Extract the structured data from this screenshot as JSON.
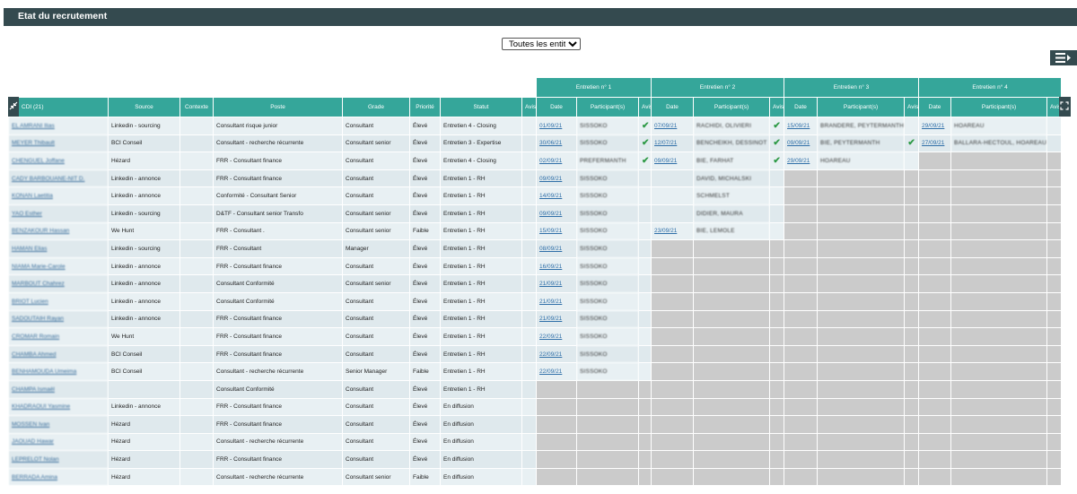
{
  "header": {
    "title": "Etat du recrutement"
  },
  "filter": {
    "selected": "Toutes les entités"
  },
  "table": {
    "groups": [
      "Entretien n° 1",
      "Entretien n° 2",
      "Entretien n° 3",
      "Entretien n° 4"
    ],
    "columns": [
      "CDI (21)",
      "Source",
      "Contexte",
      "Poste",
      "Grade",
      "Priorité",
      "Statut",
      "Avis"
    ],
    "interview_columns": [
      "Date",
      "Participant(s)",
      "Avis"
    ],
    "rows": [
      {
        "name": "EL AMRANI Ilias",
        "source": "Linkedin - sourcing",
        "contexte": "",
        "poste": "Consultant risque junior",
        "grade": "Consultant",
        "priorite": "Élevé",
        "statut": "Entretien 4 - Closing",
        "i": [
          [
            "01/09/21",
            "SISSOKO",
            true
          ],
          [
            "07/09/21",
            "RACHIDI, OLIVIERI",
            true
          ],
          [
            "15/09/21",
            "BRANDERE, PEYTERMANTH",
            false
          ],
          [
            "29/09/21",
            "HOAREAU",
            false
          ]
        ]
      },
      {
        "name": "MEYER Thibault",
        "source": "BCI Conseil",
        "contexte": "",
        "poste": "Consultant - recherche récurrente",
        "grade": "Consultant senior",
        "priorite": "Élevé",
        "statut": "Entretien 3 - Expertise",
        "i": [
          [
            "30/06/21",
            "SISSOKO",
            true
          ],
          [
            "12/07/21",
            "BENCHEIKH, DESSINOT",
            true
          ],
          [
            "09/09/21",
            "BIE, PEYTERMANTH",
            true
          ],
          [
            "27/09/21",
            "BALLARA-HECTOUL, HOAREAU",
            false
          ]
        ]
      },
      {
        "name": "CHENGUEL Joffane",
        "source": "Hézard",
        "contexte": "",
        "poste": "FRR - Consultant finance",
        "grade": "Consultant",
        "priorite": "Élevé",
        "statut": "Entretien 4 - Closing",
        "i": [
          [
            "02/09/21",
            "PREFERMANTH",
            true
          ],
          [
            "09/09/21",
            "BIE, FARHAT",
            true
          ],
          [
            "29/09/21",
            "HOAREAU",
            false
          ],
          null
        ]
      },
      {
        "name": "CADY BARBOUANE-NIT D.",
        "source": "Linkedin - annonce",
        "contexte": "",
        "poste": "FRR - Consultant finance",
        "grade": "Consultant",
        "priorite": "Élevé",
        "statut": "Entretien 1 - RH",
        "i": [
          [
            "09/09/21",
            "SISSOKO",
            false
          ],
          [
            "",
            "DAVID, MICHALSKI",
            false
          ],
          null,
          null
        ]
      },
      {
        "name": "KONAN Laetitia",
        "source": "Linkedin - annonce",
        "contexte": "",
        "poste": "Conformité - Consultant Senior",
        "grade": "Consultant",
        "priorite": "Élevé",
        "statut": "Entretien 1 - RH",
        "i": [
          [
            "14/09/21",
            "SISSOKO",
            false
          ],
          [
            "",
            "SCHMELST",
            false
          ],
          null,
          null
        ]
      },
      {
        "name": "YAO Esther",
        "source": "Linkedin - sourcing",
        "contexte": "",
        "poste": "D&TF - Consultant senior Transfo",
        "grade": "Consultant senior",
        "priorite": "Élevé",
        "statut": "Entretien 1 - RH",
        "i": [
          [
            "09/09/21",
            "SISSOKO",
            false
          ],
          [
            "",
            "DIDIER, MAURA",
            false
          ],
          null,
          null
        ]
      },
      {
        "name": "BENZAKOUR Hassan",
        "source": "We Hunt",
        "contexte": "",
        "poste": "FRR - Consultant .",
        "grade": "Consultant senior",
        "priorite": "Faible",
        "statut": "Entretien 1 - RH",
        "i": [
          [
            "15/09/21",
            "SISSOKO",
            false
          ],
          [
            "23/09/21",
            "BIE, LEMOLE",
            false
          ],
          null,
          null
        ]
      },
      {
        "name": "HAMAN Elias",
        "source": "Linkedin - sourcing",
        "contexte": "",
        "poste": "FRR - Consultant",
        "grade": "Manager",
        "priorite": "Élevé",
        "statut": "Entretien 1 - RH",
        "i": [
          [
            "08/09/21",
            "SISSOKO",
            false
          ],
          null,
          null,
          null
        ]
      },
      {
        "name": "NIAMA Marie-Carole",
        "source": "Linkedin - annonce",
        "contexte": "",
        "poste": "FRR - Consultant finance",
        "grade": "Consultant",
        "priorite": "Élevé",
        "statut": "Entretien 1 - RH",
        "i": [
          [
            "16/09/21",
            "SISSOKO",
            false
          ],
          null,
          null,
          null
        ]
      },
      {
        "name": "MARBOUT Chahrez",
        "source": "Linkedin - annonce",
        "contexte": "",
        "poste": "Consultant Conformité",
        "grade": "Consultant senior",
        "priorite": "Élevé",
        "statut": "Entretien 1 - RH",
        "i": [
          [
            "21/09/21",
            "SISSOKO",
            false
          ],
          null,
          null,
          null
        ]
      },
      {
        "name": "BRIOT Lucien",
        "source": "Linkedin - annonce",
        "contexte": "",
        "poste": "Consultant Conformité",
        "grade": "Consultant",
        "priorite": "Élevé",
        "statut": "Entretien 1 - RH",
        "i": [
          [
            "21/09/21",
            "SISSOKO",
            false
          ],
          null,
          null,
          null
        ]
      },
      {
        "name": "SADOUTAIH Rayan",
        "source": "Linkedin - annonce",
        "contexte": "",
        "poste": "FRR - Consultant finance",
        "grade": "Consultant",
        "priorite": "Élevé",
        "statut": "Entretien 1 - RH",
        "i": [
          [
            "21/09/21",
            "SISSOKO",
            false
          ],
          null,
          null,
          null
        ]
      },
      {
        "name": "CROMAR Romain",
        "source": "We Hunt",
        "contexte": "",
        "poste": "FRR - Consultant finance",
        "grade": "Consultant",
        "priorite": "Élevé",
        "statut": "Entretien 1 - RH",
        "i": [
          [
            "22/09/21",
            "SISSOKO",
            false
          ],
          null,
          null,
          null
        ]
      },
      {
        "name": "CHAMBA Ahmed",
        "source": "BCI Conseil",
        "contexte": "",
        "poste": "FRR - Consultant finance",
        "grade": "Consultant",
        "priorite": "Élevé",
        "statut": "Entretien 1 - RH",
        "i": [
          [
            "22/09/21",
            "SISSOKO",
            false
          ],
          null,
          null,
          null
        ]
      },
      {
        "name": "BENHAMOUDA Umeima",
        "source": "BCI Conseil",
        "contexte": "",
        "poste": "Consultant - recherche récurrente",
        "grade": "Senior Manager",
        "priorite": "Faible",
        "statut": "Entretien 1 - RH",
        "i": [
          [
            "22/09/21",
            "SISSOKO",
            false
          ],
          null,
          null,
          null
        ]
      },
      {
        "name": "CHAMPA Ismaël",
        "source": "",
        "contexte": "",
        "poste": "Consultant Conformité",
        "grade": "Consultant",
        "priorite": "Élevé",
        "statut": "Entretien 1 - RH",
        "i": [
          null,
          null,
          null,
          null
        ]
      },
      {
        "name": "KHADRAOUI Yasmine",
        "source": "Linkedin - annonce",
        "contexte": "",
        "poste": "FRR - Consultant finance",
        "grade": "Consultant",
        "priorite": "Élevé",
        "statut": "En diffusion",
        "i": [
          null,
          null,
          null,
          null
        ]
      },
      {
        "name": "MOSSEN Ivan",
        "source": "Hézard",
        "contexte": "",
        "poste": "FRR - Consultant finance",
        "grade": "Consultant",
        "priorite": "Élevé",
        "statut": "En diffusion",
        "i": [
          null,
          null,
          null,
          null
        ]
      },
      {
        "name": "JAOUAD Hawar",
        "source": "Hézard",
        "contexte": "",
        "poste": "Consultant - recherche récurrente",
        "grade": "Consultant",
        "priorite": "Élevé",
        "statut": "En diffusion",
        "i": [
          null,
          null,
          null,
          null
        ]
      },
      {
        "name": "LEPRELOT Nolan",
        "source": "Hézard",
        "contexte": "",
        "poste": "FRR - Consultant finance",
        "grade": "Consultant",
        "priorite": "Élevé",
        "statut": "En diffusion",
        "i": [
          null,
          null,
          null,
          null
        ]
      },
      {
        "name": "BERRADA Amina",
        "source": "Hézard",
        "contexte": "",
        "poste": "Consultant - recherche récurrente",
        "grade": "Consultant senior",
        "priorite": "Faible",
        "statut": "En diffusion",
        "i": [
          null,
          null,
          null,
          null
        ]
      }
    ]
  },
  "icons": {
    "collapse": "collapse-arrows-icon",
    "expand": "expand-arrows-icon",
    "view_toggle": "list-view-icon",
    "check": "check-icon"
  },
  "colors": {
    "header_bar": "#344a4f",
    "teal": "#35a69a",
    "check": "#2f9a47"
  }
}
